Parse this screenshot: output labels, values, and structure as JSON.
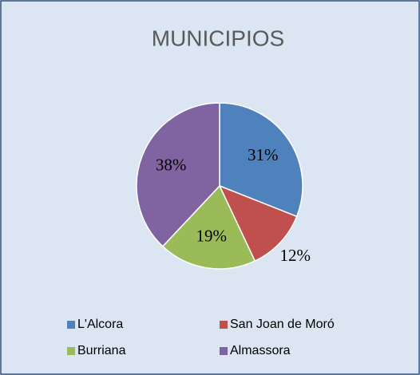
{
  "chart_data": {
    "type": "pie",
    "title": "MUNICIPIOS",
    "categories": [
      "L'Alcora",
      "San Joan de Moró",
      "Burriana",
      "Almassora"
    ],
    "values": [
      31,
      12,
      19,
      38
    ],
    "value_labels": [
      "31%",
      "12%",
      "19%",
      "38%"
    ],
    "colors": [
      "#4f81bd",
      "#c0504d",
      "#9bbb59",
      "#8064a2"
    ],
    "legend": "bottom"
  }
}
